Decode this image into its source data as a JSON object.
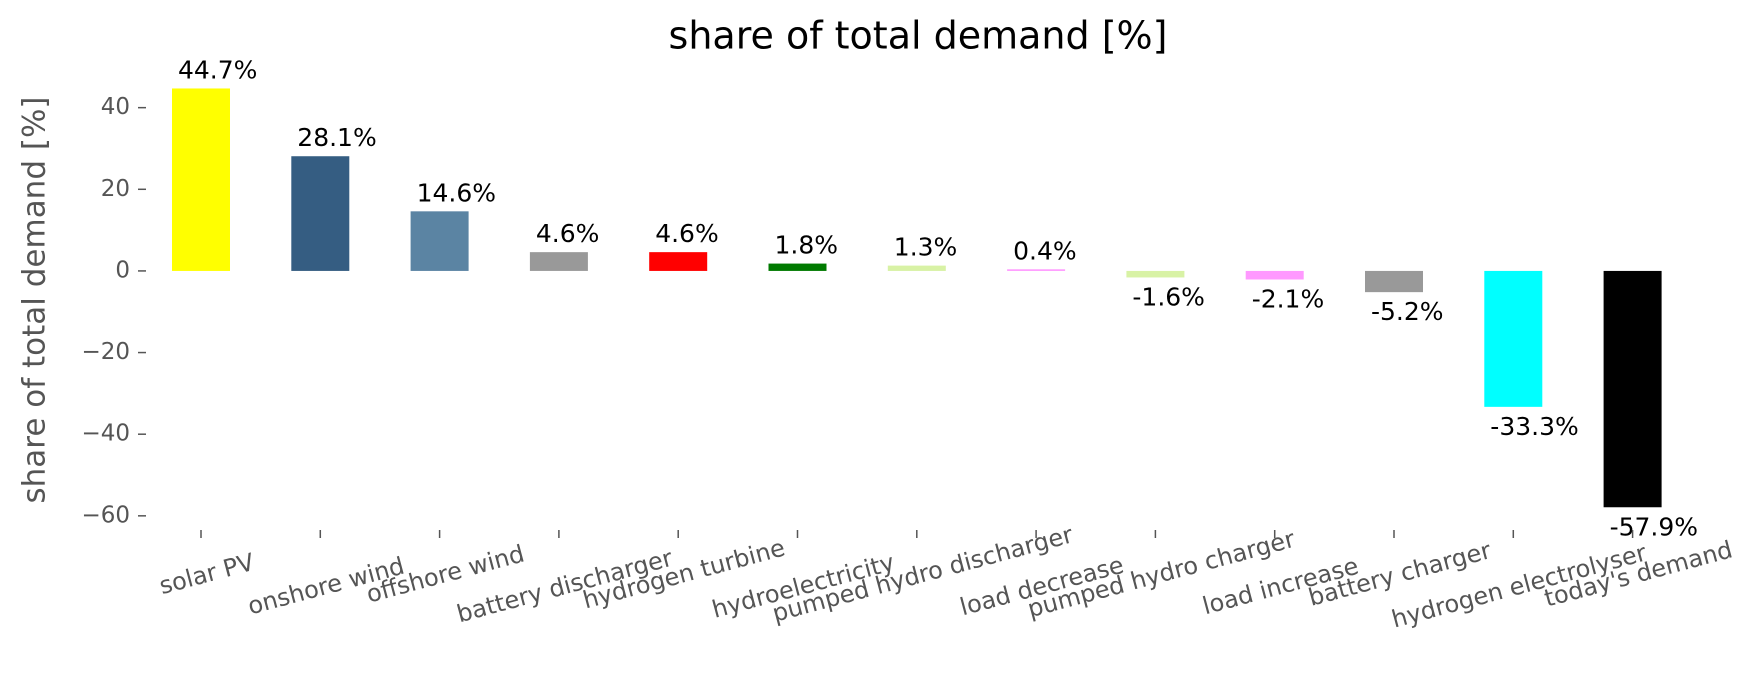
{
  "chart_data": {
    "type": "bar",
    "title": "share of total demand [%]",
    "y_label": "share of total demand [%]",
    "categories": [
      "solar PV",
      "onshore wind",
      "offshore wind",
      "battery discharger",
      "hydrogen turbine",
      "hydroelectricity",
      "pumped hydro discharger",
      "load decrease",
      "pumped hydro charger",
      "load increase",
      "battery charger",
      "hydrogen electrolyser",
      "today's demand"
    ],
    "values": [
      44.7,
      28.1,
      14.6,
      4.6,
      4.6,
      1.8,
      1.3,
      0.4,
      -1.6,
      -2.1,
      -5.2,
      -33.3,
      -57.9
    ],
    "value_labels": [
      "44.7%",
      "28.1%",
      "14.6%",
      "4.6%",
      "4.6%",
      "1.8%",
      "1.3%",
      "0.4%",
      "-1.6%",
      "-2.1%",
      "-5.2%",
      "-33.3%",
      "-57.9%"
    ],
    "colors": [
      "#ffff00",
      "#355d82",
      "#5b84a3",
      "#999999",
      "#ff0000",
      "#007a00",
      "#d8f2a5",
      "#ff99ff",
      "#d8f2a5",
      "#ff99ff",
      "#999999",
      "#00ffff",
      "#000000"
    ],
    "ylim": [
      -62,
      48
    ],
    "yticks": [
      {
        "value": -60,
        "label": "−60"
      },
      {
        "value": -40,
        "label": "−40"
      },
      {
        "value": -20,
        "label": "−20"
      },
      0,
      20,
      40
    ],
    "grid": false
  }
}
